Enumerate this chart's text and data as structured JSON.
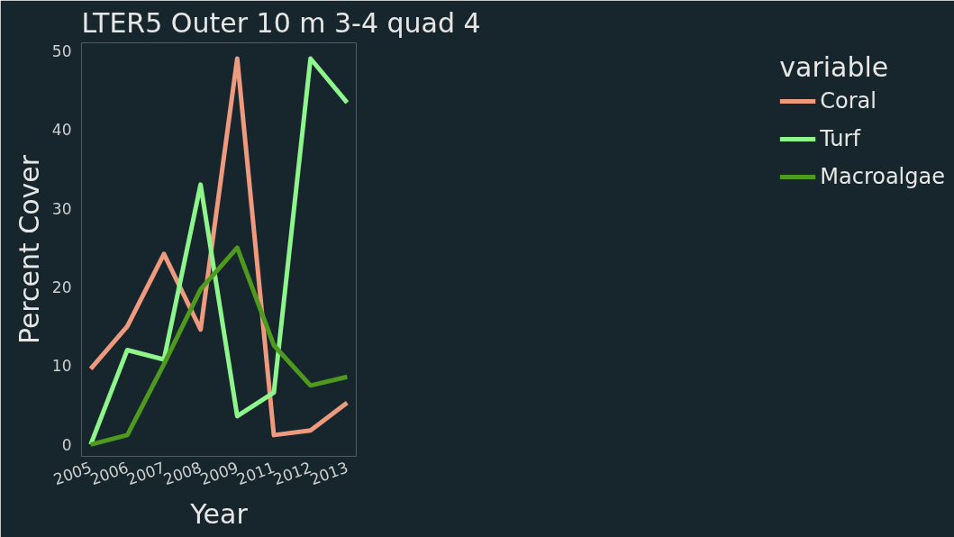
{
  "chart_data": {
    "type": "line",
    "title": "LTER5 Outer 10 m 3-4 quad 4",
    "xlabel": "Year",
    "ylabel": "Percent Cover",
    "legend_title": "variable",
    "categories": [
      "2005",
      "2006",
      "2007",
      "2008",
      "2009",
      "2011",
      "2012",
      "2013"
    ],
    "series": [
      {
        "name": "Coral",
        "color": "#ee9a7e",
        "values": [
          9.6,
          15,
          24.2,
          14.6,
          49,
          1.2,
          1.8,
          5.3
        ]
      },
      {
        "name": "Turf",
        "color": "#8ef58c",
        "values": [
          0,
          12,
          10.8,
          33,
          3.6,
          6.6,
          49,
          43.4
        ]
      },
      {
        "name": "Macroalgae",
        "color": "#4d9a1e",
        "values": [
          0,
          1.2,
          10.2,
          19.7,
          25,
          12.6,
          7.5,
          8.6
        ]
      }
    ],
    "ylim": [
      -1.5,
      51
    ],
    "yticks": [
      0,
      10,
      20,
      30,
      40,
      50
    ],
    "grid": false,
    "legend": "right",
    "line_style": "solid",
    "marker": "none"
  }
}
